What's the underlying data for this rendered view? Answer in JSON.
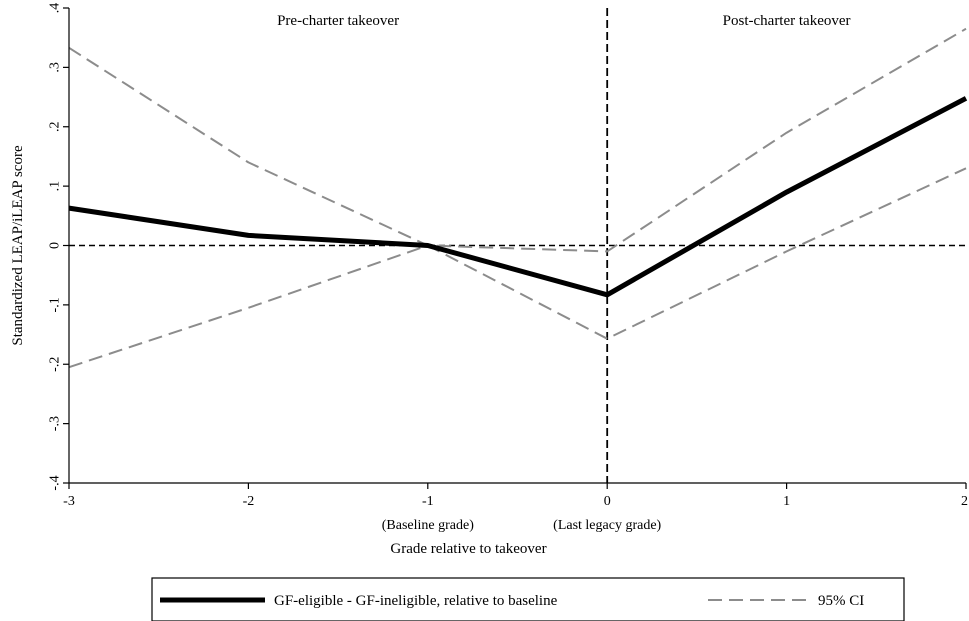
{
  "chart_data": {
    "type": "line",
    "xlabel": "Grade relative to takeover",
    "ylabel": "Standardized LEAP/iLEAP score",
    "xlim": [
      -3,
      2
    ],
    "ylim": [
      -0.4,
      0.4
    ],
    "x_ticks": [
      {
        "value": -3,
        "label": "-3"
      },
      {
        "value": -2,
        "label": "-2"
      },
      {
        "value": -1,
        "label": "-1"
      },
      {
        "value": 0,
        "label": "0"
      },
      {
        "value": 1,
        "label": "1"
      },
      {
        "value": 2,
        "label": "2"
      }
    ],
    "x_sublabels": [
      {
        "value": -1,
        "label": "(Baseline grade)"
      },
      {
        "value": 0,
        "label": "(Last legacy grade)"
      }
    ],
    "y_ticks": [
      {
        "value": -0.4,
        "label": "-.4"
      },
      {
        "value": -0.3,
        "label": "-.3"
      },
      {
        "value": -0.2,
        "label": "-.2"
      },
      {
        "value": -0.1,
        "label": "-.1"
      },
      {
        "value": 0,
        "label": "0"
      },
      {
        "value": 0.1,
        "label": ".1"
      },
      {
        "value": 0.2,
        "label": ".2"
      },
      {
        "value": 0.3,
        "label": ".3"
      },
      {
        "value": 0.4,
        "label": ".4"
      }
    ],
    "grid": false,
    "legend_position": "bottom",
    "reference_lines": [
      {
        "axis": "y",
        "value": 0,
        "style": "dashed",
        "color": "#000000"
      },
      {
        "axis": "x",
        "value": 0,
        "style": "dashed",
        "color": "#000000"
      }
    ],
    "annotations": [
      {
        "text": "Pre-charter takeover",
        "x": -1.5,
        "y": 0.395
      },
      {
        "text": "Post-charter takeover",
        "x": 1.0,
        "y": 0.395
      }
    ],
    "series": [
      {
        "name": "GF-eligible - GF-ineligible, relative to baseline",
        "style": "solid",
        "color": "#000000",
        "x": [
          -3,
          -2,
          -1,
          0,
          1,
          2
        ],
        "y": [
          0.063,
          0.017,
          0.0,
          -0.083,
          0.09,
          0.248
        ]
      },
      {
        "name": "95% CI",
        "style": "dashed",
        "color": "#8c8c8c",
        "x": [
          -3,
          -2,
          -1,
          0,
          1,
          2
        ],
        "y": [
          0.333,
          0.14,
          0.0,
          -0.01,
          0.19,
          0.365
        ]
      },
      {
        "name": "",
        "style": "dashed",
        "color": "#8c8c8c",
        "x": [
          -3,
          -2,
          -1,
          0,
          1,
          2
        ],
        "y": [
          -0.205,
          -0.105,
          0.0,
          -0.157,
          -0.01,
          0.13
        ]
      }
    ],
    "legend": [
      {
        "label": "GF-eligible - GF-ineligible, relative to baseline",
        "style": "solid",
        "color": "#000000"
      },
      {
        "label": "95% CI",
        "style": "dashed",
        "color": "#8c8c8c"
      }
    ]
  }
}
